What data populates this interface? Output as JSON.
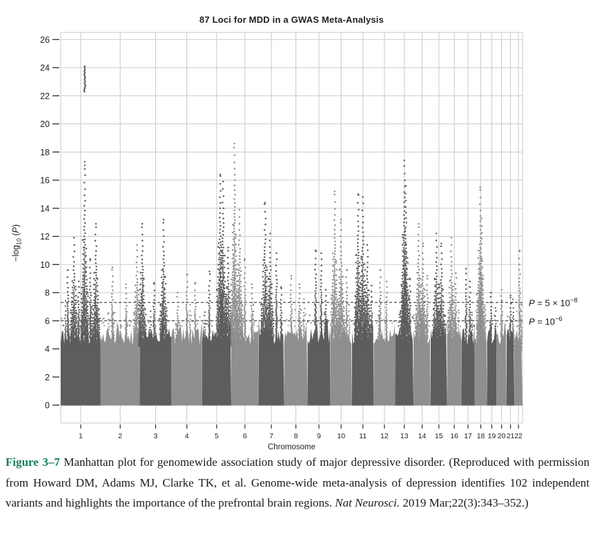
{
  "chart_data": {
    "type": "scatter",
    "subtype": "manhattan-plot",
    "title": "87 Loci for MDD in a GWAS Meta-Analysis",
    "xlabel": "Chromosome",
    "ylabel_parts": {
      "pre": "−log",
      "sub": "10",
      "mid": " (",
      "p": "P",
      "post": ")"
    },
    "ylim": [
      0,
      26
    ],
    "yticks": [
      0,
      2,
      4,
      6,
      8,
      10,
      12,
      14,
      16,
      18,
      20,
      22,
      24,
      26
    ],
    "grid": true,
    "thresholds": [
      {
        "p": "P",
        "eq": " = 5 × 10",
        "sup": "−8",
        "value": 7.3
      },
      {
        "p": "P",
        "eq": " = 10",
        "sup": "−6",
        "value": 6.0
      }
    ],
    "colors": {
      "odd_chromosome": "#5d5d5d",
      "even_chromosome": "#8f8f8f",
      "grid": "#c9c9c9",
      "axis_tick": "#2a2a2a",
      "threshold_line": "#4d4d4d"
    },
    "grass": {
      "base": 4.25,
      "variation": 1.2,
      "max": 6.4
    },
    "chromosomes": [
      {
        "label": "1",
        "length": 249,
        "peaks": [
          [
            0.18,
            9.6
          ],
          [
            0.33,
            11.9
          ],
          [
            0.45,
            8.8
          ],
          [
            0.6,
            16.8
          ],
          [
            0.74,
            10.4
          ],
          [
            0.88,
            12.9
          ]
        ]
      },
      {
        "label": "2",
        "length": 243,
        "peaks": [
          [
            0.3,
            9.8
          ],
          [
            0.65,
            8.6
          ],
          [
            0.93,
            11.4
          ]
        ]
      },
      {
        "label": "3",
        "length": 198,
        "peaks": [
          [
            0.08,
            12.9
          ],
          [
            0.45,
            8.7
          ],
          [
            0.75,
            13.2
          ]
        ]
      },
      {
        "label": "4",
        "length": 191,
        "peaks": [
          [
            0.2,
            8.0
          ],
          [
            0.5,
            9.3
          ],
          [
            0.78,
            8.7
          ]
        ]
      },
      {
        "label": "5",
        "length": 181,
        "peaks": [
          [
            0.25,
            9.5
          ],
          [
            0.62,
            16.4
          ],
          [
            0.72,
            15.9
          ],
          [
            0.9,
            11.2
          ]
        ]
      },
      {
        "label": "6",
        "length": 171,
        "peaks": [
          [
            0.12,
            18.6
          ],
          [
            0.3,
            13.9
          ],
          [
            0.5,
            10.4
          ],
          [
            0.75,
            8.6
          ]
        ]
      },
      {
        "label": "7",
        "length": 159,
        "peaks": [
          [
            0.25,
            14.4
          ],
          [
            0.45,
            12.2
          ],
          [
            0.7,
            10.8
          ],
          [
            0.88,
            8.4
          ]
        ]
      },
      {
        "label": "8",
        "length": 146,
        "peaks": [
          [
            0.3,
            9.2
          ],
          [
            0.65,
            8.6
          ]
        ]
      },
      {
        "label": "9",
        "length": 141,
        "peaks": [
          [
            0.35,
            11.0
          ],
          [
            0.6,
            10.8
          ],
          [
            0.8,
            8.2
          ]
        ]
      },
      {
        "label": "10",
        "length": 136,
        "peaks": [
          [
            0.2,
            15.2
          ],
          [
            0.5,
            13.2
          ],
          [
            0.75,
            9.6
          ]
        ]
      },
      {
        "label": "11",
        "length": 135,
        "peaks": [
          [
            0.28,
            15.0
          ],
          [
            0.5,
            14.8
          ],
          [
            0.7,
            11.4
          ],
          [
            0.9,
            8.5
          ]
        ]
      },
      {
        "label": "12",
        "length": 133,
        "peaks": [
          [
            0.3,
            9.6
          ],
          [
            0.6,
            8.8
          ]
        ]
      },
      {
        "label": "13",
        "length": 115,
        "peaks": [
          [
            0.5,
            17.4
          ],
          [
            0.58,
            15.6
          ],
          [
            0.8,
            9.0
          ]
        ]
      },
      {
        "label": "14",
        "length": 107,
        "peaks": [
          [
            0.3,
            12.9
          ],
          [
            0.55,
            11.5
          ],
          [
            0.8,
            9.2
          ]
        ]
      },
      {
        "label": "15",
        "length": 102,
        "peaks": [
          [
            0.35,
            12.2
          ],
          [
            0.65,
            11.5
          ]
        ]
      },
      {
        "label": "16",
        "length": 90,
        "peaks": [
          [
            0.3,
            11.9
          ],
          [
            0.6,
            9.4
          ]
        ]
      },
      {
        "label": "17",
        "length": 81,
        "peaks": [
          [
            0.35,
            9.7
          ],
          [
            0.65,
            8.8
          ]
        ]
      },
      {
        "label": "18",
        "length": 78,
        "peaks": [
          [
            0.45,
            15.5
          ],
          [
            0.55,
            13.3
          ]
        ]
      },
      {
        "label": "19",
        "length": 59,
        "peaks": [
          [
            0.4,
            8.0
          ]
        ]
      },
      {
        "label": "20",
        "length": 63,
        "peaks": [
          [
            0.5,
            8.2
          ]
        ]
      },
      {
        "label": "21",
        "length": 48,
        "peaks": [
          [
            0.5,
            7.8
          ]
        ]
      },
      {
        "label": "22",
        "length": 51,
        "peaks": [
          [
            0.65,
            11.0
          ]
        ]
      }
    ],
    "chr1_top_segment": {
      "chromosome": "1",
      "pos": 0.6,
      "from": 22.3,
      "to": 24.2,
      "gap_dots": [
        17.05,
        17.3
      ]
    }
  },
  "caption": {
    "label": "Figure 3–7",
    "label_color": "#177d63",
    "text1": " Manhattan plot for genomewide association study of major depressive disorder. (Reproduced with permission from Howard DM, Adams MJ, Clarke TK, et al. Genome-wide meta-analysis of depression identifies 102 independent variants and highlights the importance of the prefrontal brain regions. ",
    "journal": "Nat Neurosci.",
    "text2": " 2019 Mar;22(3):343–352.)"
  }
}
